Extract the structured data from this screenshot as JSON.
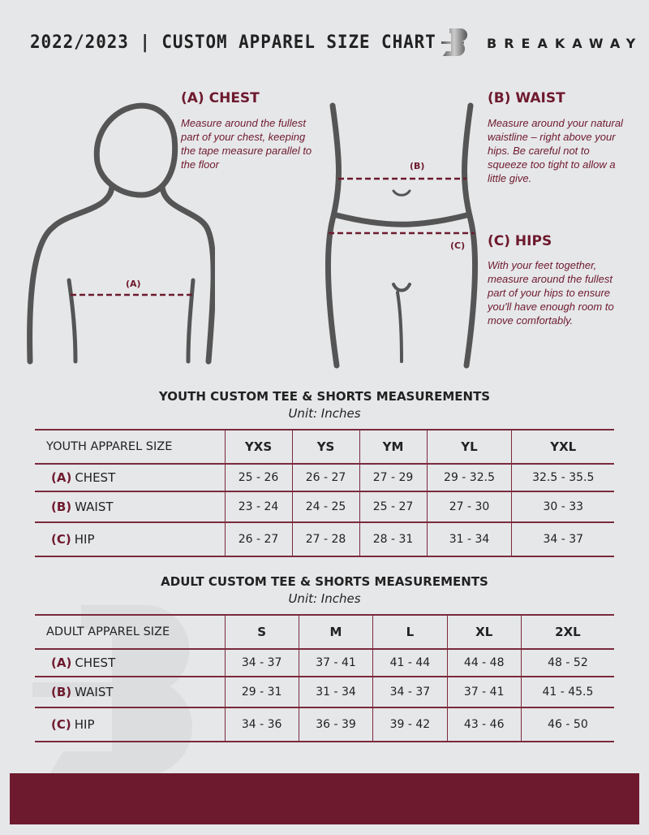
{
  "header": {
    "title": "2022/2023 | CUSTOM APPAREL SIZE CHART",
    "brand": "BREAKAWAY"
  },
  "guide": {
    "chest": {
      "title": "(A) CHEST",
      "text": "Measure around the fullest part of your chest, keeping the tape measure parallel to the floor",
      "marker": "(A)"
    },
    "waist": {
      "title": "(B) WAIST",
      "text": "Measure around your natural waistline – right above your hips. Be careful not to squeeze too tight to allow a little give.",
      "marker": "(B)"
    },
    "hips": {
      "title": "(C) HIPS",
      "text": "With your feet together, measure around the fullest part of your hips to ensure you'll have enough room to move comfortably.",
      "marker": "(C)"
    }
  },
  "youth": {
    "title": "YOUTH CUSTOM TEE & SHORTS MEASUREMENTS",
    "unit": "Unit: Inches",
    "header": "YOUTH APPAREL SIZE",
    "sizes": [
      "YXS",
      "YS",
      "YM",
      "YL",
      "YXL"
    ],
    "rows": [
      {
        "letter": "(A)",
        "label": "CHEST",
        "values": [
          "25 - 26",
          "26 - 27",
          "27 - 29",
          "29 - 32.5",
          "32.5 - 35.5"
        ]
      },
      {
        "letter": "(B)",
        "label": "WAIST",
        "values": [
          "23 - 24",
          "24 - 25",
          "25 - 27",
          "27 - 30",
          "30 - 33"
        ]
      },
      {
        "letter": "(C)",
        "label": "HIP",
        "values": [
          "26 - 27",
          "27 - 28",
          "28 - 31",
          "31 - 34",
          "34 - 37"
        ]
      }
    ]
  },
  "adult": {
    "title": "ADULT CUSTOM TEE & SHORTS MEASUREMENTS",
    "unit": "Unit: Inches",
    "header": "ADULT APPAREL SIZE",
    "sizes": [
      "S",
      "M",
      "L",
      "XL",
      "2XL"
    ],
    "rows": [
      {
        "letter": "(A)",
        "label": "CHEST",
        "values": [
          "34 - 37",
          "37 - 41",
          "41 - 44",
          "44 - 48",
          "48 - 52"
        ]
      },
      {
        "letter": "(B)",
        "label": "WAIST",
        "values": [
          "29 - 31",
          "31 - 34",
          "34 - 37",
          "37 - 41",
          "41 - 45.5"
        ]
      },
      {
        "letter": "(C)",
        "label": "HIP",
        "values": [
          "34 - 36",
          "36 - 39",
          "39 - 42",
          "43 - 46",
          "46 - 50"
        ]
      }
    ]
  },
  "colors": {
    "background": "#e6e7e9",
    "accent": "#6e1a2e"
  }
}
